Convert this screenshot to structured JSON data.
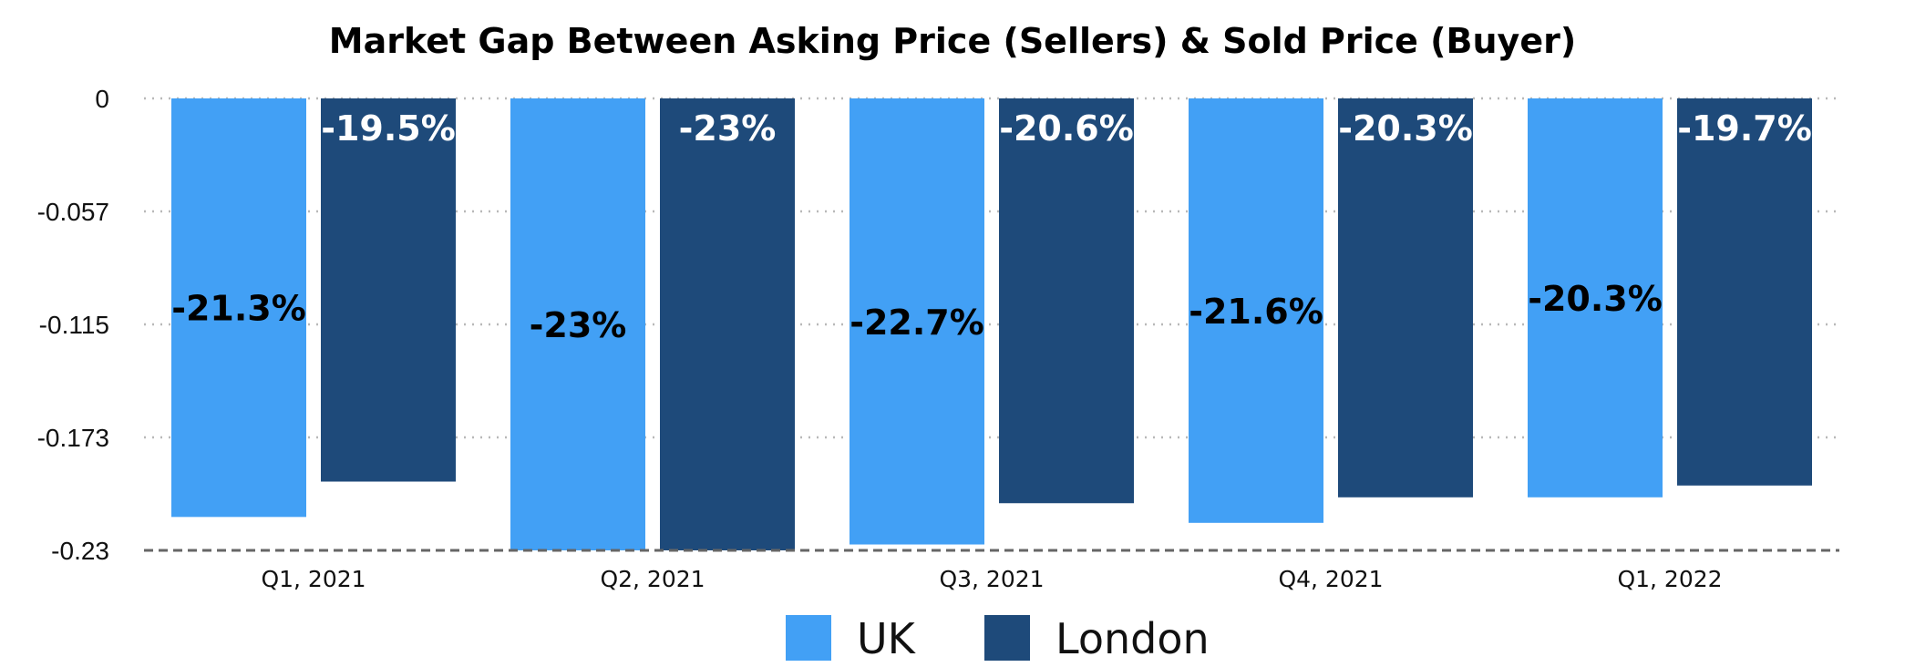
{
  "chart_data": {
    "type": "bar",
    "title": "Market Gap Between Asking Price (Sellers) & Sold Price (Buyer)",
    "xlabel": "",
    "ylabel": "",
    "categories": [
      "Q1, 2021",
      "Q2, 2021",
      "Q3, 2021",
      "Q4, 2021",
      "Q1, 2022"
    ],
    "series": [
      {
        "name": "UK",
        "color": "#42a0f5",
        "values": [
          -0.213,
          -0.23,
          -0.227,
          -0.216,
          -0.203
        ],
        "labels": [
          "-21.3%",
          "-23%",
          "-22.7%",
          "-21.6%",
          "-20.3%"
        ]
      },
      {
        "name": "London",
        "color": "#1e4a7a",
        "values": [
          -0.195,
          -0.23,
          -0.206,
          -0.203,
          -0.197
        ],
        "labels": [
          "-19.5%",
          "-23%",
          "-20.6%",
          "-20.3%",
          "-19.7%"
        ]
      }
    ],
    "ylim": [
      -0.23,
      0
    ],
    "yticks": [
      0,
      -0.0575,
      -0.115,
      -0.1725,
      -0.23
    ],
    "ytick_labels": [
      "0",
      "-0.057",
      "-0.115",
      "-0.173",
      "-0.23"
    ],
    "grid": true,
    "legend": "bottom-center"
  }
}
